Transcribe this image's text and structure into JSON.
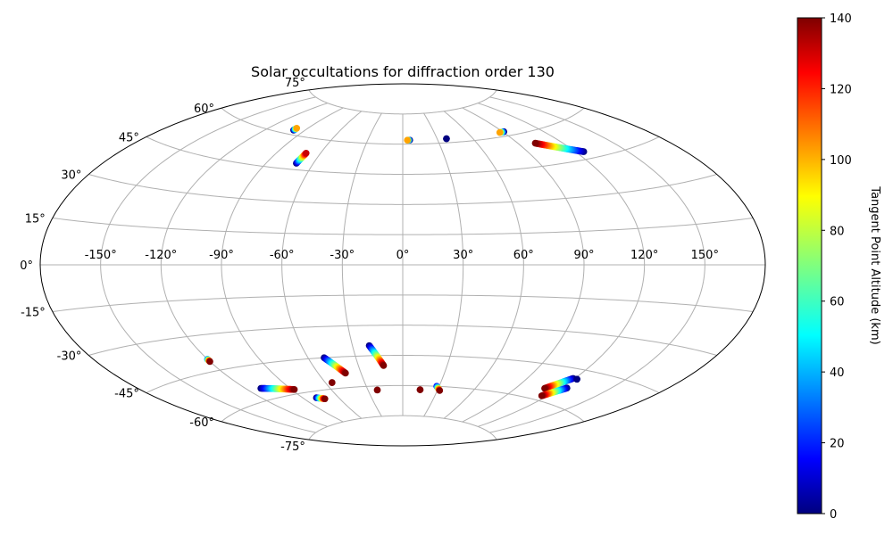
{
  "chart_data": {
    "type": "scatter",
    "projection": "aitoff",
    "title": "Solar occultations for diffraction order 130",
    "xlabel": "",
    "ylabel": "",
    "grid": true,
    "colormap": "jet",
    "xlim": [
      -180,
      180
    ],
    "ylim": [
      -90,
      90
    ],
    "xticks": [
      -150,
      -120,
      -90,
      -60,
      -30,
      0,
      30,
      60,
      90,
      120,
      150
    ],
    "xtick_labels": [
      "-150°",
      "-120°",
      "-90°",
      "-60°",
      "-30°",
      "0°",
      "30°",
      "60°",
      "90°",
      "120°",
      "150°"
    ],
    "yticks": [
      -75,
      -60,
      -45,
      -30,
      -15,
      0,
      15,
      30,
      45,
      60,
      75
    ],
    "ytick_labels": [
      "-75°",
      "-60°",
      "-45°",
      "-30°",
      "-15°",
      "0°",
      "15°",
      "30°",
      "45°",
      "60°",
      "75°"
    ],
    "colorbar": {
      "label": "Tangent Point Altitude (km)",
      "range": [
        0,
        140
      ],
      "ticks": [
        0,
        20,
        40,
        60,
        80,
        100,
        120,
        140
      ],
      "tick_labels": [
        "0",
        "20",
        "40",
        "60",
        "80",
        "100",
        "120",
        "140"
      ]
    },
    "tracks": [
      {
        "lon": [
          -99,
          -99
        ],
        "lat": [
          62,
          63
        ],
        "alt": [
          0,
          100
        ]
      },
      {
        "lon": [
          -71,
          -70
        ],
        "lat": [
          48,
          53
        ],
        "alt": [
          0,
          130
        ]
      },
      {
        "lon": [
          6,
          4
        ],
        "lat": [
          62,
          62
        ],
        "alt": [
          0,
          100
        ]
      },
      {
        "lon": [
          38,
          38
        ],
        "lat": [
          62,
          62
        ],
        "alt": [
          0,
          0
        ]
      },
      {
        "lon": [
          91,
          87
        ],
        "lat": [
          62,
          62
        ],
        "alt": [
          0,
          100
        ]
      },
      {
        "lon": [
          125,
          102
        ],
        "lat": [
          48,
          55
        ],
        "alt": [
          0,
          140
        ]
      },
      {
        "lon": [
          -120,
          -120
        ],
        "lat": [
          -40,
          -41
        ],
        "alt": [
          40,
          140
        ]
      },
      {
        "lon": [
          -110,
          -88
        ],
        "lat": [
          -55,
          -58
        ],
        "alt": [
          0,
          140
        ]
      },
      {
        "lon": [
          -79,
          -73
        ],
        "lat": [
          -63,
          -64
        ],
        "alt": [
          0,
          140
        ]
      },
      {
        "lon": [
          -50,
          -41
        ],
        "lat": [
          -45,
          -53
        ],
        "alt": [
          0,
          140
        ]
      },
      {
        "lon": [
          -55,
          -55
        ],
        "lat": [
          -57,
          -57
        ],
        "alt": [
          140,
          140
        ]
      },
      {
        "lon": [
          -20,
          -13
        ],
        "lat": [
          -40,
          -50
        ],
        "alt": [
          0,
          140
        ]
      },
      {
        "lon": [
          -22,
          -22
        ],
        "lat": [
          -62,
          -62
        ],
        "alt": [
          140,
          140
        ]
      },
      {
        "lon": [
          15,
          15
        ],
        "lat": [
          -62,
          -62
        ],
        "alt": [
          140,
          140
        ]
      },
      {
        "lon": [
          28,
          32
        ],
        "lat": [
          -60,
          -62
        ],
        "alt": [
          20,
          140
        ]
      },
      {
        "lon": [
          119,
          110
        ],
        "lat": [
          -49,
          -55
        ],
        "alt": [
          0,
          140
        ]
      },
      {
        "lon": [
          124,
          116
        ],
        "lat": [
          -53,
          -58
        ],
        "alt": [
          0,
          140
        ]
      },
      {
        "lon": [
          122,
          122
        ],
        "lat": [
          -49,
          -49
        ],
        "alt": [
          0,
          0
        ]
      }
    ]
  }
}
